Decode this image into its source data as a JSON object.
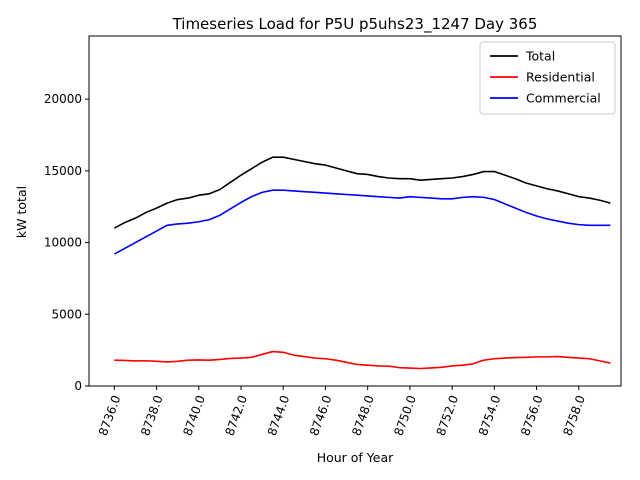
{
  "chart_data": {
    "type": "line",
    "title": "Timeseries Load for P5U p5uhs23_1247  Day 365",
    "xlabel": "Hour of Year",
    "ylabel": "kW total",
    "xlim": [
      8734.8,
      8760.0
    ],
    "ylim": [
      0,
      24400
    ],
    "xticks": [
      8736,
      8738,
      8740,
      8742,
      8744,
      8746,
      8748,
      8750,
      8752,
      8754,
      8756,
      8758
    ],
    "xtick_labels": [
      "8736.0",
      "8738.0",
      "8740.0",
      "8742.0",
      "8744.0",
      "8746.0",
      "8748.0",
      "8750.0",
      "8752.0",
      "8754.0",
      "8756.0",
      "8758.0"
    ],
    "yticks": [
      0,
      5000,
      10000,
      15000,
      20000
    ],
    "ytick_labels": [
      "0",
      "5000",
      "10000",
      "15000",
      "20000"
    ],
    "legend_position": "top-right",
    "x": [
      8736.0,
      8736.5,
      8737.0,
      8737.5,
      8738.0,
      8738.5,
      8739.0,
      8739.5,
      8740.0,
      8740.5,
      8741.0,
      8741.5,
      8742.0,
      8742.5,
      8743.0,
      8743.5,
      8744.0,
      8744.5,
      8745.0,
      8745.5,
      8746.0,
      8746.5,
      8747.0,
      8747.5,
      8748.0,
      8748.5,
      8749.0,
      8749.5,
      8750.0,
      8750.5,
      8751.0,
      8751.5,
      8752.0,
      8752.5,
      8753.0,
      8753.5,
      8754.0,
      8754.5,
      8755.0,
      8755.5,
      8756.0,
      8756.5,
      8757.0,
      8757.5,
      8758.0,
      8758.5,
      8759.0,
      8759.5
    ],
    "series": [
      {
        "name": "Total",
        "color": "#000000",
        "values": [
          11000,
          11400,
          11700,
          12100,
          12400,
          12750,
          13000,
          13100,
          13300,
          13400,
          13700,
          14200,
          14700,
          15150,
          15600,
          15950,
          15950,
          15800,
          15650,
          15500,
          15400,
          15200,
          15000,
          14800,
          14750,
          14600,
          14500,
          14450,
          14450,
          14350,
          14400,
          14450,
          14500,
          14600,
          14750,
          14950,
          14950,
          14700,
          14450,
          14150,
          13950,
          13750,
          13600,
          13400,
          13200,
          13100,
          12950,
          12750
        ]
      },
      {
        "name": "Residential",
        "color": "#ff0000",
        "values": [
          1800,
          1780,
          1750,
          1760,
          1720,
          1680,
          1720,
          1800,
          1820,
          1800,
          1850,
          1920,
          1950,
          2000,
          2200,
          2400,
          2350,
          2150,
          2050,
          1950,
          1900,
          1800,
          1650,
          1500,
          1450,
          1400,
          1380,
          1280,
          1250,
          1220,
          1260,
          1300,
          1400,
          1450,
          1550,
          1800,
          1900,
          1950,
          1980,
          2000,
          2030,
          2030,
          2050,
          2000,
          1950,
          1900,
          1750,
          1600
        ]
      },
      {
        "name": "Commercial",
        "color": "#0000ff",
        "values": [
          9200,
          9600,
          10000,
          10400,
          10800,
          11200,
          11300,
          11350,
          11450,
          11600,
          11900,
          12350,
          12800,
          13200,
          13500,
          13650,
          13650,
          13600,
          13550,
          13500,
          13450,
          13400,
          13350,
          13300,
          13250,
          13200,
          13150,
          13100,
          13200,
          13150,
          13100,
          13050,
          13050,
          13150,
          13200,
          13150,
          13000,
          12700,
          12400,
          12100,
          11850,
          11650,
          11500,
          11350,
          11250,
          11200,
          11200,
          11200
        ]
      }
    ]
  }
}
